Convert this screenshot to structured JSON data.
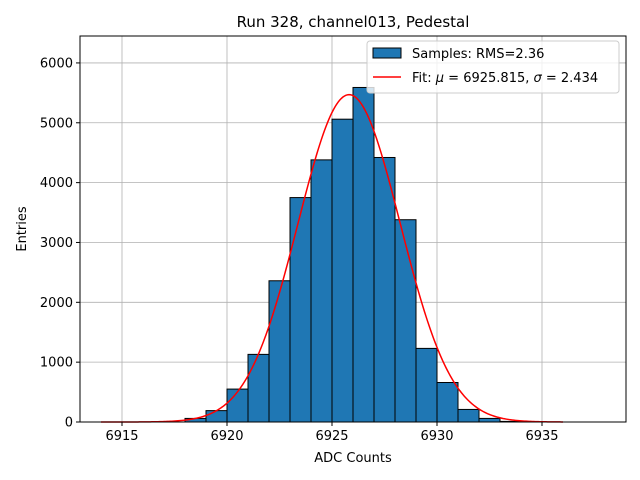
{
  "chart_data": {
    "type": "bar",
    "title": "Run 328, channel013, Pedestal",
    "xlabel": "ADC Counts",
    "ylabel": "Entries",
    "xlim": [
      6913,
      6939
    ],
    "ylim": [
      0,
      6450
    ],
    "xticks": [
      6915,
      6920,
      6925,
      6930,
      6935
    ],
    "yticks": [
      0,
      1000,
      2000,
      3000,
      4000,
      5000,
      6000
    ],
    "grid": true,
    "legend_position": "top-right",
    "bin_width": 1,
    "histogram": {
      "name": "Samples: RMS=2.36",
      "color": "#1f77b4",
      "edge_color": "#000000",
      "bin_left_edges": [
        6918,
        6919,
        6920,
        6921,
        6922,
        6923,
        6924,
        6925,
        6926,
        6927,
        6928,
        6929,
        6930,
        6931,
        6932,
        6933
      ],
      "counts": [
        60,
        190,
        550,
        1130,
        2360,
        3750,
        4380,
        5060,
        5590,
        4420,
        3380,
        1230,
        660,
        210,
        60,
        10
      ]
    },
    "fit": {
      "name_prefix": "Fit: ",
      "name_mu": "μ",
      "name_mid": " = 6925.815, ",
      "name_sigma": "σ",
      "name_suffix": " = 2.434",
      "color": "#ff0000",
      "mu": 6925.815,
      "sigma": 2.434,
      "amplitude": 5470,
      "x_range": [
        6914,
        6936
      ]
    }
  }
}
